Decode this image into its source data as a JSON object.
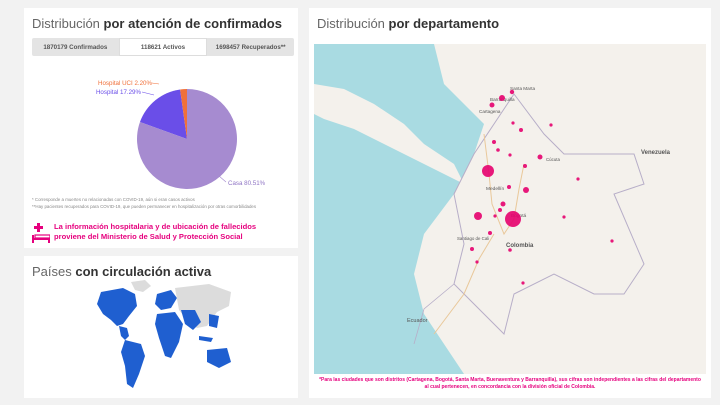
{
  "confirmados": {
    "title_prefix": "Distribución",
    "title_bold": "por atención de confirmados",
    "tabs": [
      {
        "label": "1870179 Confirmados",
        "active": false
      },
      {
        "label": "118621 Activos",
        "active": true
      },
      {
        "label": "1698457 Recuperados**",
        "active": false
      }
    ],
    "note1": "* Corresponde a muertes no relacionadas con COVID-19, aún si eran casos activos",
    "note2": "**Hay pacientes recuperados para COVID-19, que pueden permanecer en hospitalización por otras comorbilidades",
    "info_line1": "La información hospitalaria y de ubicación de fallecidos",
    "info_line2": "proviene del Ministerio de Salud y Protección Social",
    "colors": {
      "casa": "#a68bd0",
      "hospital": "#6a4ee8",
      "uci": "#f0703a",
      "accent": "#e6007e"
    }
  },
  "chart_data": {
    "type": "pie",
    "title": "",
    "slices": [
      {
        "label": "Casa",
        "value": 80.51,
        "display": "Casa 80.51%",
        "color": "#a68bd0"
      },
      {
        "label": "Hospital",
        "value": 17.29,
        "display": "Hospital 17.29%",
        "color": "#6a4ee8"
      },
      {
        "label": "Hospital UCI",
        "value": 2.2,
        "display": "Hospital UCI 2.20%",
        "color": "#f0703a"
      }
    ]
  },
  "paises": {
    "title_prefix": "Países",
    "title_bold": "con circulación activa"
  },
  "departamento": {
    "title_prefix": "Distribución",
    "title_bold": "por departamento",
    "map_labels": {
      "barranquilla": "Barranquilla",
      "cartagena": "Cartagena",
      "santa_marta": "Santa Marta",
      "venezuela": "Venezuela",
      "colombia": "Colombia",
      "medellin": "Medellín",
      "bogota": "Bogotá",
      "cali": "Santiago de Cali",
      "ecuador": "Ecuador",
      "cucuta": "Cúcuta"
    },
    "footnote": "*Para las ciudades que son distritos (Cartagena, Bogotá, Santa Marta, Buenaventura y Barranquilla), sus cifras son independientes a las cifras del departamento al cual pertenecen, en concordancia con la división oficial de Colombia."
  }
}
